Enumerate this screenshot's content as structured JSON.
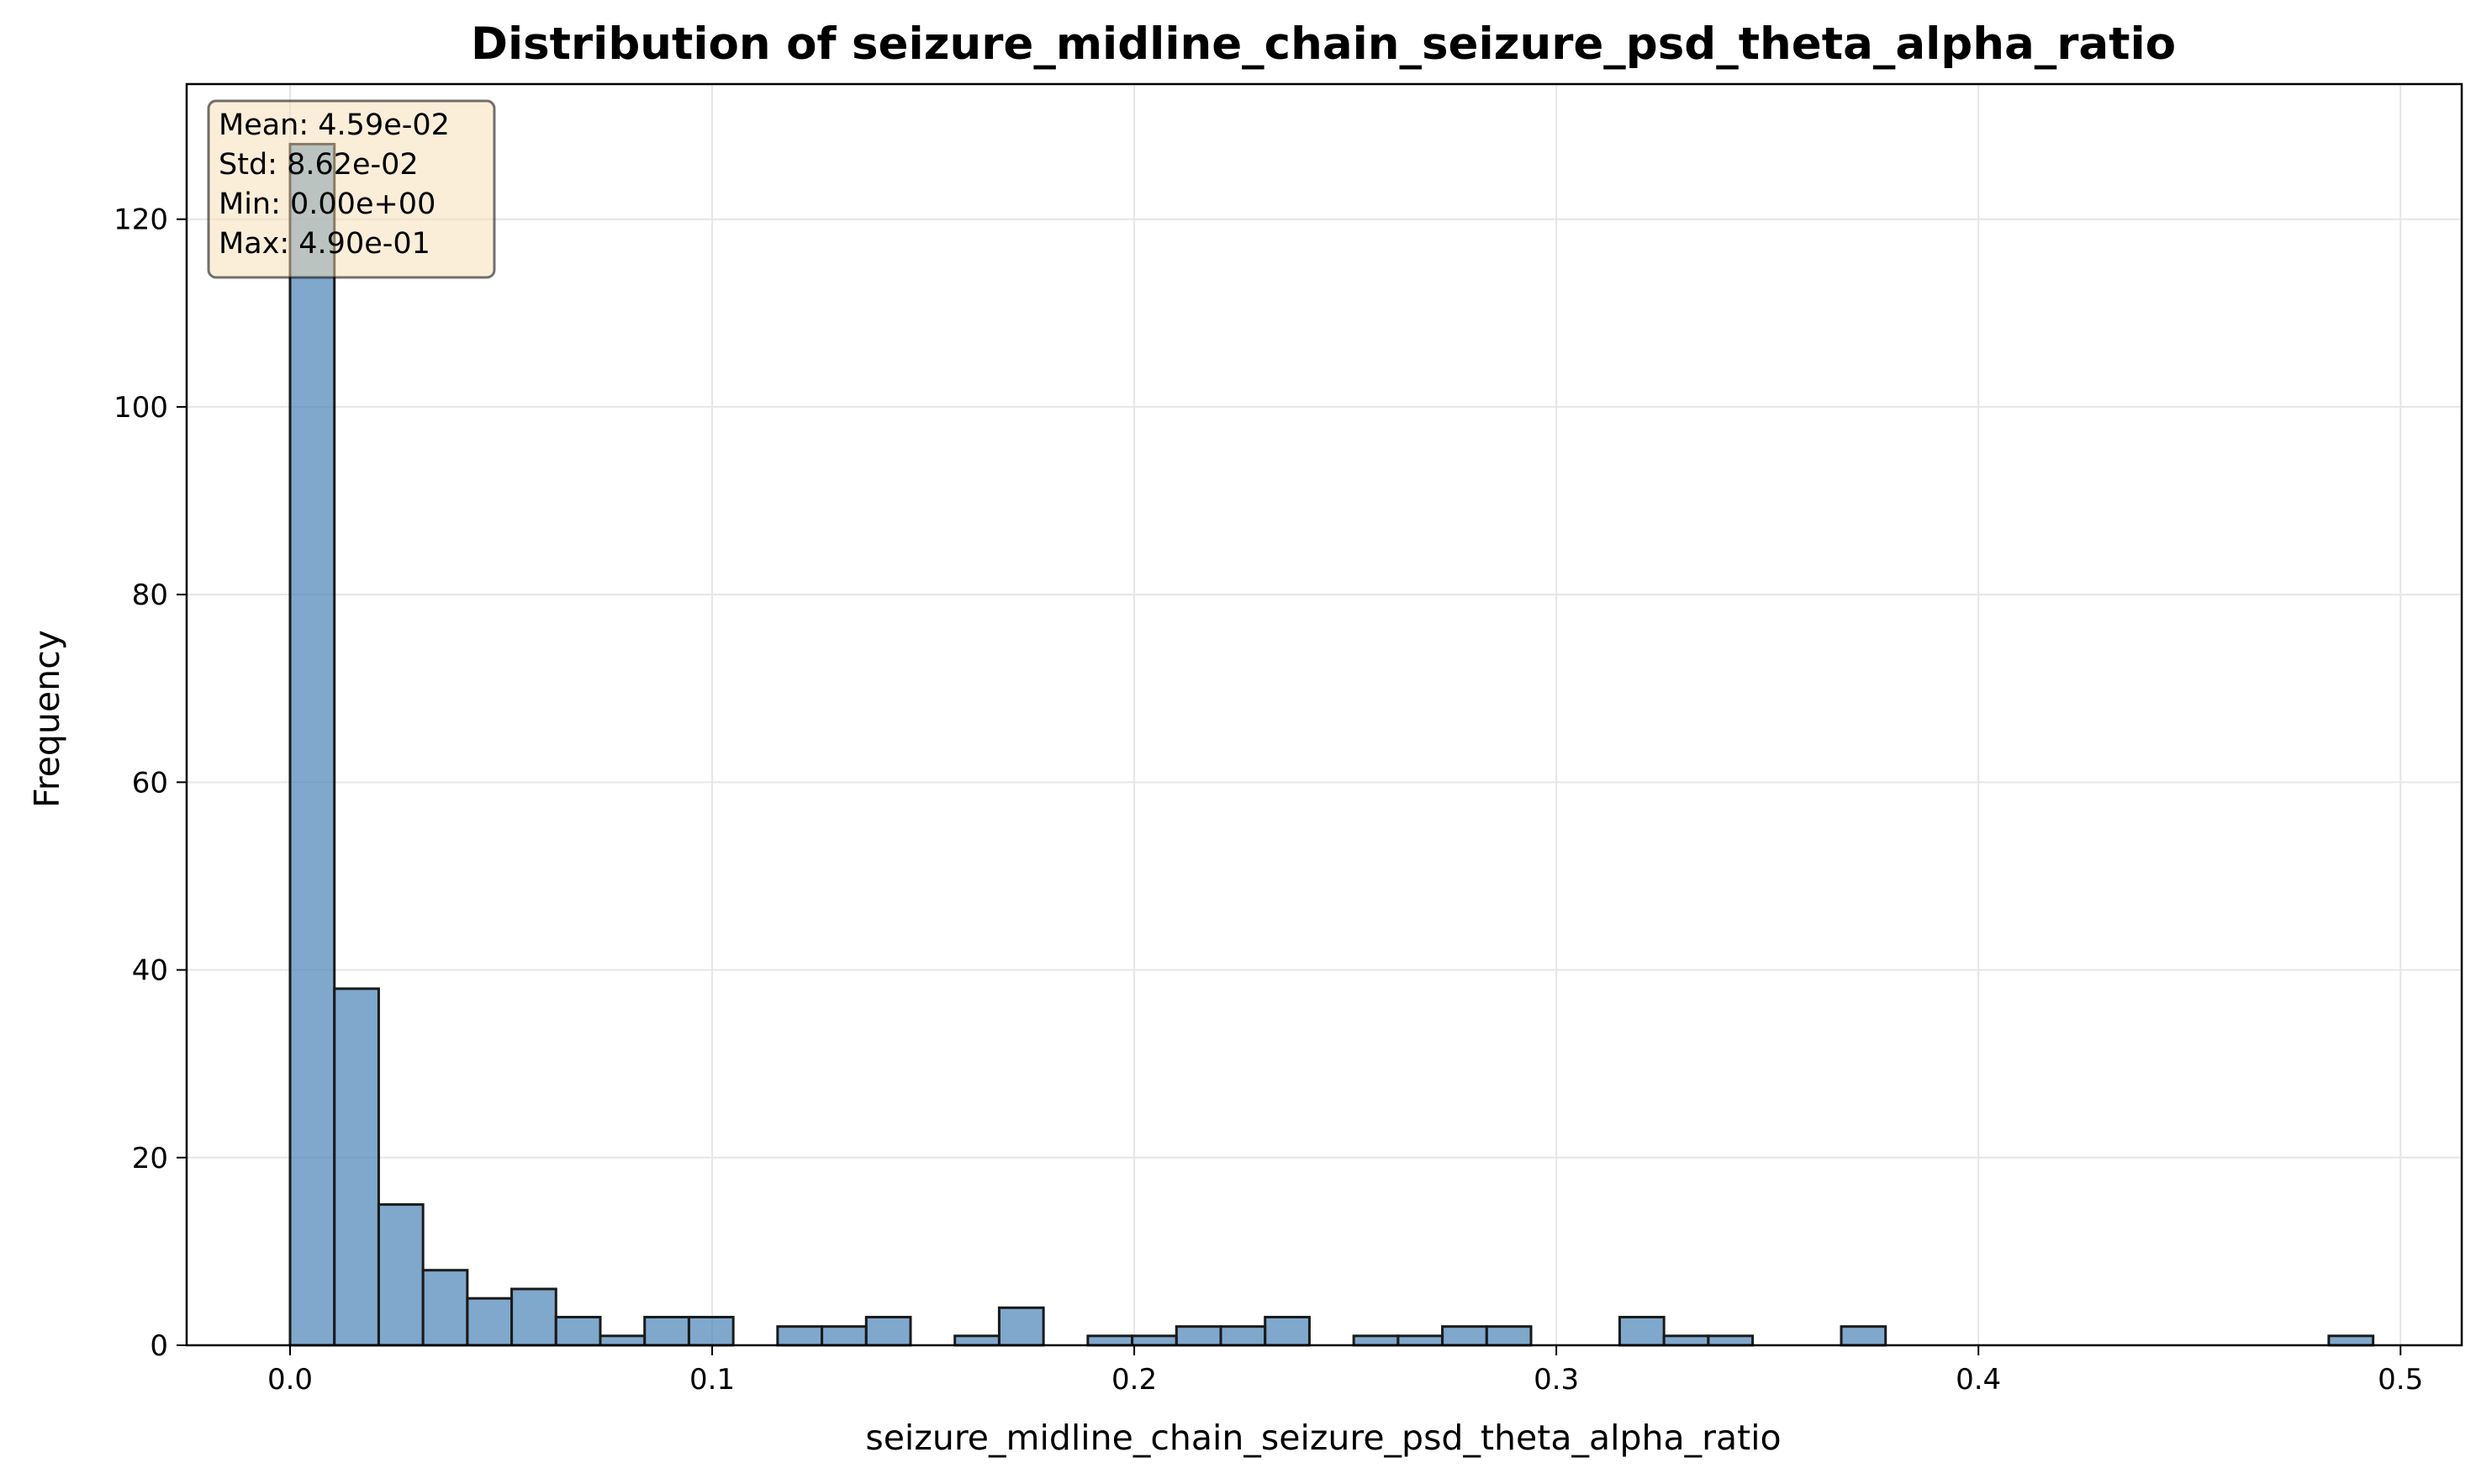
{
  "chart_data": {
    "type": "bar",
    "title": "Distribution of seizure_midline_chain_seizure_psd_theta_alpha_ratio",
    "xlabel": "seizure_midline_chain_seizure_psd_theta_alpha_ratio",
    "ylabel": "Frequency",
    "xlim": [
      -0.0245,
      0.5145
    ],
    "ylim": [
      0,
      134.4
    ],
    "xticks": [
      0.0,
      0.1,
      0.2,
      0.3,
      0.4,
      0.5
    ],
    "xtick_labels": [
      "0.0",
      "0.1",
      "0.2",
      "0.3",
      "0.4",
      "0.5"
    ],
    "yticks": [
      0,
      20,
      40,
      60,
      80,
      100,
      120
    ],
    "ytick_labels": [
      "0",
      "20",
      "40",
      "60",
      "80",
      "100",
      "120"
    ],
    "grid": true,
    "bin_start": 0.0,
    "bin_width": 0.0105,
    "counts": [
      128,
      38,
      15,
      8,
      5,
      6,
      3,
      1,
      3,
      3,
      0,
      2,
      2,
      3,
      0,
      1,
      4,
      0,
      1,
      1,
      2,
      2,
      3,
      0,
      1,
      1,
      2,
      2,
      0,
      0,
      3,
      1,
      1,
      0,
      0,
      2,
      0,
      0,
      0,
      0,
      0,
      0,
      0,
      0,
      0,
      0,
      1
    ],
    "stats_box": {
      "lines": [
        "Mean: 4.59e-02",
        "Std: 8.62e-02",
        "Min: 0.00e+00",
        "Max: 4.90e-01"
      ],
      "placement": "top-left"
    },
    "colors": {
      "bar": "#4f86b8",
      "edge": "#1a1a1a",
      "stats_box": "#f5deb3"
    }
  }
}
